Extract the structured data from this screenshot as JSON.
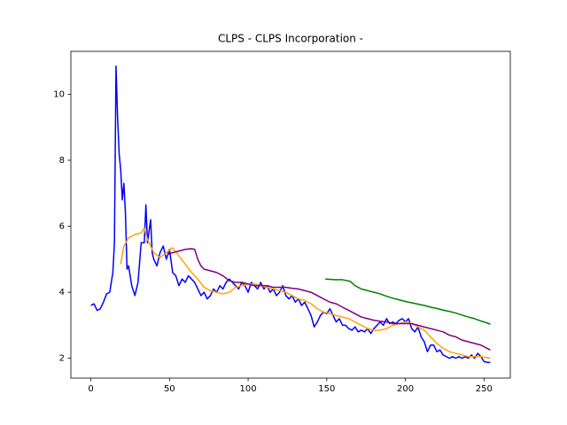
{
  "chart_data": {
    "type": "line",
    "title": "CLPS - CLPS Incorporation -",
    "xlim": [
      -12.7,
      266.7
    ],
    "xticks": [
      0,
      50,
      100,
      150,
      200,
      250
    ],
    "ylim": [
      1.4,
      11.3
    ],
    "yticks": [
      2,
      4,
      6,
      8,
      10
    ],
    "series": [
      {
        "color": "#0000ff",
        "x": [
          0,
          2,
          4,
          6,
          8,
          10,
          12,
          14,
          15,
          16,
          17,
          18,
          19,
          20,
          21,
          22,
          23,
          24,
          26,
          28,
          30,
          32,
          34,
          35,
          36,
          38,
          39,
          40,
          42,
          44,
          46,
          48,
          50,
          52,
          54,
          56,
          58,
          60,
          62,
          64,
          66,
          68,
          70,
          72,
          74,
          76,
          78,
          80,
          82,
          84,
          86,
          88,
          90,
          92,
          94,
          96,
          98,
          100,
          102,
          104,
          106,
          108,
          110,
          112,
          114,
          116,
          118,
          120,
          122,
          124,
          126,
          128,
          130,
          132,
          134,
          136,
          138,
          140,
          142,
          144,
          146,
          148,
          150,
          152,
          154,
          156,
          158,
          160,
          162,
          164,
          166,
          168,
          170,
          172,
          174,
          176,
          178,
          180,
          182,
          184,
          186,
          188,
          190,
          192,
          194,
          196,
          198,
          200,
          202,
          204,
          206,
          208,
          210,
          212,
          214,
          216,
          218,
          220,
          222,
          224,
          226,
          228,
          230,
          232,
          234,
          236,
          238,
          240,
          242,
          244,
          246,
          248,
          250,
          252,
          254
        ],
        "values": [
          3.6,
          3.65,
          3.45,
          3.5,
          3.7,
          3.95,
          4.0,
          4.6,
          5.5,
          10.85,
          9.3,
          8.2,
          7.7,
          6.8,
          7.3,
          6.4,
          4.7,
          4.8,
          4.2,
          3.9,
          4.3,
          5.5,
          5.5,
          6.65,
          5.5,
          6.2,
          5.2,
          5.0,
          4.8,
          5.2,
          5.4,
          5.0,
          5.3,
          4.6,
          4.5,
          4.2,
          4.4,
          4.3,
          4.5,
          4.4,
          4.3,
          4.1,
          3.9,
          4.0,
          3.8,
          3.9,
          4.1,
          4.0,
          4.2,
          4.1,
          4.3,
          4.4,
          4.3,
          4.2,
          4.1,
          4.3,
          4.2,
          4.0,
          4.3,
          4.2,
          4.1,
          4.3,
          4.1,
          4.2,
          4.0,
          4.1,
          3.9,
          4.0,
          4.2,
          3.9,
          3.8,
          3.9,
          3.7,
          3.8,
          3.6,
          3.7,
          3.5,
          3.3,
          2.95,
          3.1,
          3.3,
          3.4,
          3.35,
          3.5,
          3.3,
          3.1,
          3.2,
          3.0,
          3.0,
          2.9,
          2.85,
          2.95,
          2.8,
          2.85,
          2.8,
          2.9,
          2.75,
          2.9,
          3.0,
          3.1,
          3.0,
          3.2,
          3.05,
          3.1,
          3.05,
          3.15,
          3.2,
          3.1,
          3.2,
          2.9,
          2.8,
          2.95,
          2.65,
          2.5,
          2.2,
          2.4,
          2.4,
          2.2,
          2.25,
          2.1,
          2.05,
          2.0,
          2.05,
          2.0,
          2.05,
          2.0,
          2.05,
          2.0,
          2.1,
          2.0,
          2.15,
          2.05,
          1.9,
          1.88,
          1.87
        ]
      },
      {
        "color": "#ffa500",
        "x": [
          19,
          21,
          24,
          28,
          32,
          34,
          36,
          40,
          44,
          48,
          52,
          56,
          60,
          64,
          68,
          72,
          76,
          80,
          84,
          88,
          92,
          96,
          100,
          104,
          108,
          112,
          116,
          120,
          124,
          128,
          132,
          136,
          140,
          144,
          148,
          152,
          156,
          160,
          164,
          168,
          172,
          176,
          180,
          184,
          188,
          192,
          196,
          200,
          204,
          208,
          212,
          216,
          220,
          224,
          228,
          232,
          236,
          240,
          244,
          248,
          254
        ],
        "values": [
          4.85,
          5.4,
          5.65,
          5.75,
          5.8,
          5.95,
          5.6,
          5.2,
          5.05,
          5.2,
          5.35,
          5.1,
          4.85,
          4.6,
          4.4,
          4.15,
          4.05,
          4.0,
          3.95,
          4.0,
          4.15,
          4.2,
          4.25,
          4.25,
          4.2,
          4.15,
          4.1,
          4.05,
          4.0,
          3.9,
          3.8,
          3.75,
          3.65,
          3.5,
          3.4,
          3.35,
          3.3,
          3.25,
          3.2,
          3.1,
          3.0,
          2.9,
          2.85,
          2.85,
          2.9,
          3.0,
          3.05,
          3.1,
          3.05,
          2.95,
          2.85,
          2.65,
          2.45,
          2.3,
          2.2,
          2.15,
          2.1,
          2.05,
          2.05,
          2.05,
          2.0
        ]
      },
      {
        "color": "#800080",
        "x": [
          49,
          52,
          56,
          60,
          64,
          66,
          68,
          70,
          72,
          76,
          80,
          84,
          88,
          92,
          96,
          100,
          104,
          108,
          112,
          116,
          120,
          124,
          128,
          132,
          136,
          140,
          144,
          148,
          152,
          156,
          160,
          164,
          168,
          172,
          176,
          180,
          184,
          188,
          192,
          196,
          200,
          204,
          208,
          212,
          216,
          220,
          224,
          228,
          232,
          236,
          240,
          244,
          248,
          252,
          254
        ],
        "values": [
          5.15,
          5.2,
          5.25,
          5.3,
          5.32,
          5.3,
          5.0,
          4.8,
          4.7,
          4.65,
          4.6,
          4.5,
          4.35,
          4.3,
          4.3,
          4.25,
          4.2,
          4.2,
          4.2,
          4.15,
          4.15,
          4.15,
          4.12,
          4.1,
          4.05,
          4.0,
          3.9,
          3.8,
          3.7,
          3.65,
          3.55,
          3.45,
          3.35,
          3.25,
          3.2,
          3.15,
          3.12,
          3.1,
          3.05,
          3.05,
          3.05,
          3.05,
          3.0,
          2.95,
          2.9,
          2.85,
          2.8,
          2.7,
          2.65,
          2.55,
          2.5,
          2.45,
          2.4,
          2.3,
          2.25
        ]
      },
      {
        "color": "#008000",
        "x": [
          149,
          155,
          160,
          165,
          168,
          172,
          176,
          180,
          184,
          188,
          192,
          196,
          200,
          204,
          208,
          212,
          216,
          220,
          224,
          228,
          232,
          236,
          240,
          244,
          248,
          252,
          254
        ],
        "values": [
          4.4,
          4.38,
          4.38,
          4.33,
          4.2,
          4.1,
          4.05,
          4.0,
          3.95,
          3.88,
          3.82,
          3.77,
          3.72,
          3.68,
          3.64,
          3.6,
          3.55,
          3.51,
          3.46,
          3.42,
          3.37,
          3.31,
          3.25,
          3.2,
          3.13,
          3.07,
          3.03
        ]
      }
    ]
  }
}
